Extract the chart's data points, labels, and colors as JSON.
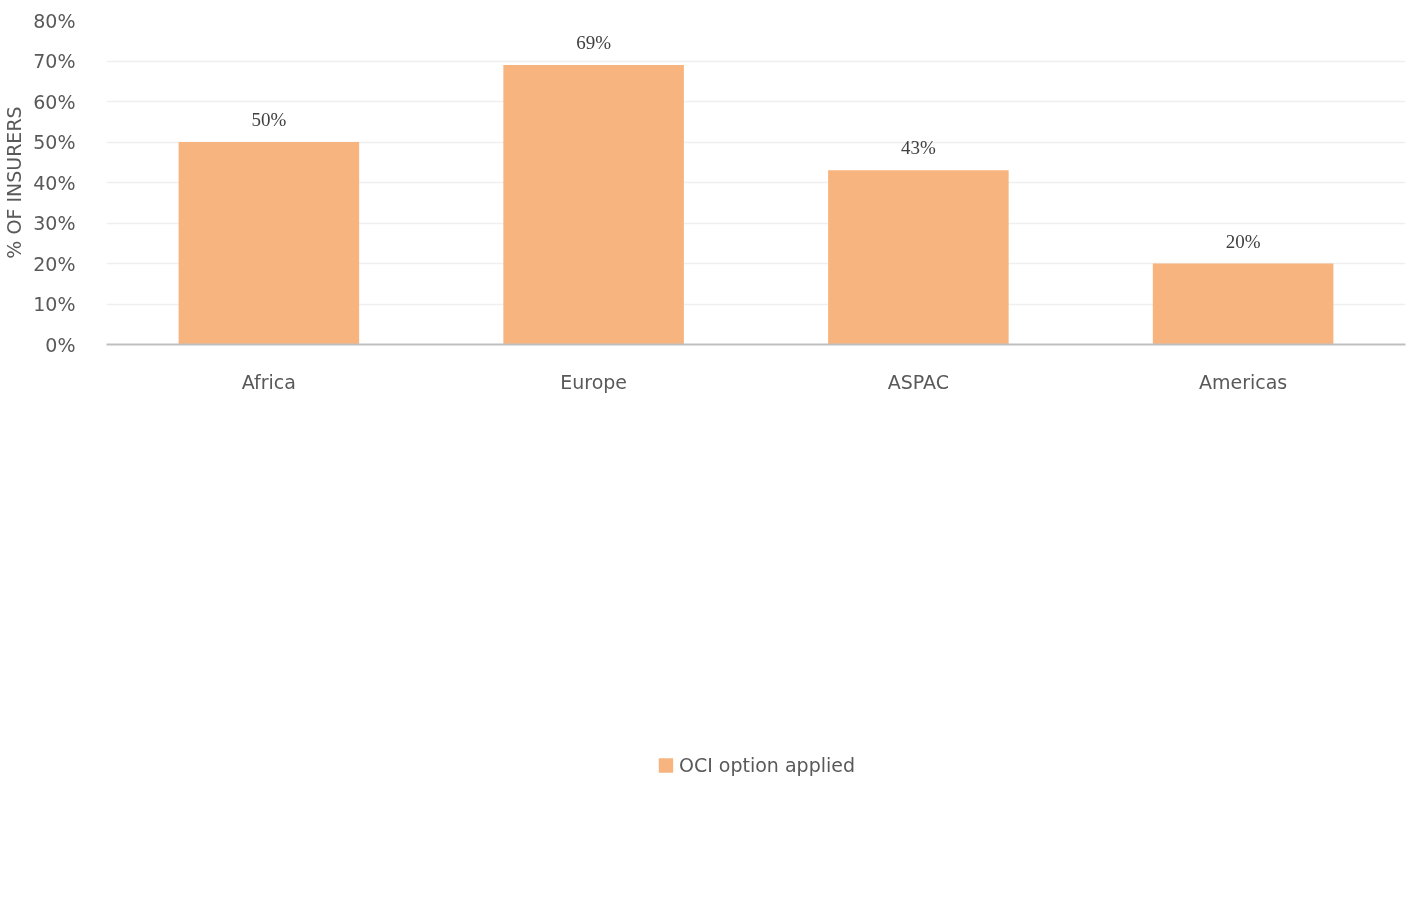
{
  "chart_data": {
    "type": "bar",
    "ylabel": "% OF INSURERS",
    "categories": [
      "Africa",
      "Europe",
      "ASPAC",
      "Americas"
    ],
    "series": [
      {
        "name": "OCI option applied",
        "color": "#f8b47f",
        "values": [
          50,
          69,
          43,
          20
        ],
        "value_labels": [
          "50%",
          "69%",
          "43%",
          "20%"
        ]
      }
    ],
    "ylim": [
      0,
      80
    ],
    "yticks": [
      {
        "value": 0,
        "label": "0%"
      },
      {
        "value": 10,
        "label": "10%"
      },
      {
        "value": 20,
        "label": "20%"
      },
      {
        "value": 30,
        "label": "30%"
      },
      {
        "value": 40,
        "label": "40%"
      },
      {
        "value": 50,
        "label": "50%"
      },
      {
        "value": 60,
        "label": "60%"
      },
      {
        "value": 70,
        "label": "70%"
      },
      {
        "value": 80,
        "label": "80%"
      }
    ],
    "grid": "y",
    "legend": "bottom"
  }
}
